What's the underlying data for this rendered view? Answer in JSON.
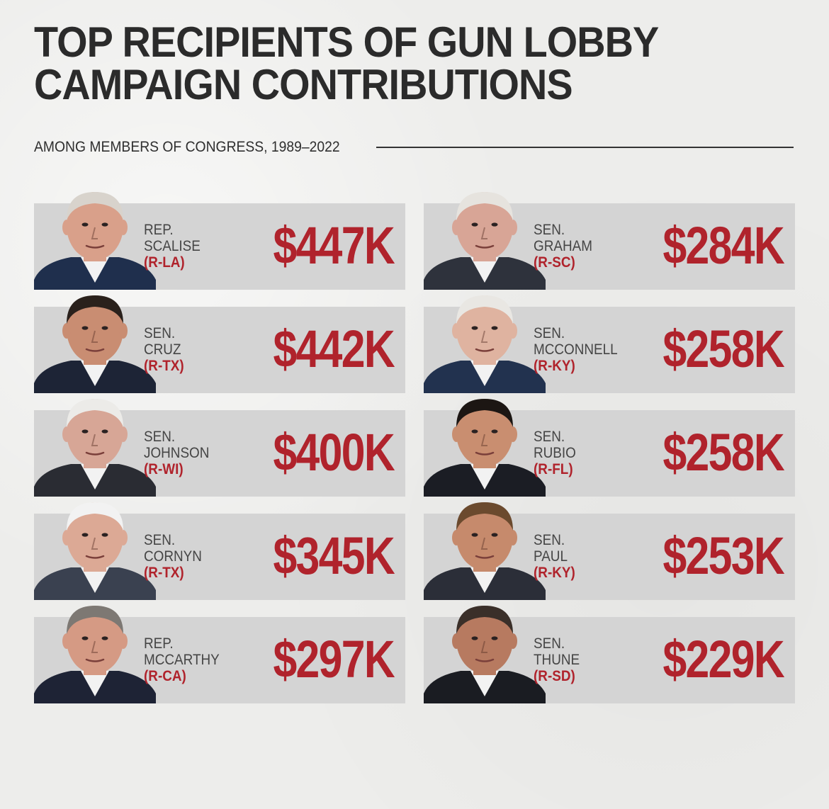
{
  "title": {
    "line1": "TOP RECIPIENTS OF GUN LOBBY",
    "line2": "CAMPAIGN CONTRIBUTIONS"
  },
  "subtitle": "AMONG MEMBERS OF CONGRESS, 1989–2022",
  "recipients": [
    {
      "title": "REP.",
      "name": "SCALISE",
      "party": "(R-LA)",
      "amount": "$447K",
      "skin": "#d9a08a",
      "hair": "#d8d3cc",
      "suit": "#1f2f4d"
    },
    {
      "title": "SEN.",
      "name": "CRUZ",
      "party": "(R-TX)",
      "amount": "$442K",
      "skin": "#c98d72",
      "hair": "#2a211c",
      "suit": "#1d2436"
    },
    {
      "title": "SEN.",
      "name": "JOHNSON",
      "party": "(R-WI)",
      "amount": "$400K",
      "skin": "#d7a696",
      "hair": "#ecebe8",
      "suit": "#2a2c33"
    },
    {
      "title": "SEN.",
      "name": "CORNYN",
      "party": "(R-TX)",
      "amount": "$345K",
      "skin": "#dca995",
      "hair": "#f2f2f2",
      "suit": "#3a4150"
    },
    {
      "title": "REP.",
      "name": "MCCARTHY",
      "party": "(R-CA)",
      "amount": "$297K",
      "skin": "#d59a84",
      "hair": "#7d7873",
      "suit": "#1e2335"
    },
    {
      "title": "SEN.",
      "name": "GRAHAM",
      "party": "(R-SC)",
      "amount": "$284K",
      "skin": "#d8a596",
      "hair": "#e6e3de",
      "suit": "#2e323c"
    },
    {
      "title": "SEN.",
      "name": "MCCONNELL",
      "party": "(R-KY)",
      "amount": "$258K",
      "skin": "#dfb3a0",
      "hair": "#e9e7e3",
      "suit": "#22324f"
    },
    {
      "title": "SEN.",
      "name": "RUBIO",
      "party": "(R-FL)",
      "amount": "$258K",
      "skin": "#c98e70",
      "hair": "#1c1613",
      "suit": "#1b1d24"
    },
    {
      "title": "SEN.",
      "name": "PAUL",
      "party": "(R-KY)",
      "amount": "$253K",
      "skin": "#c68a6c",
      "hair": "#6b4a2e",
      "suit": "#2b2e38"
    },
    {
      "title": "SEN.",
      "name": "THUNE",
      "party": "(R-SD)",
      "amount": "$229K",
      "skin": "#b77a60",
      "hair": "#3a2f29",
      "suit": "#1a1c22"
    }
  ]
}
